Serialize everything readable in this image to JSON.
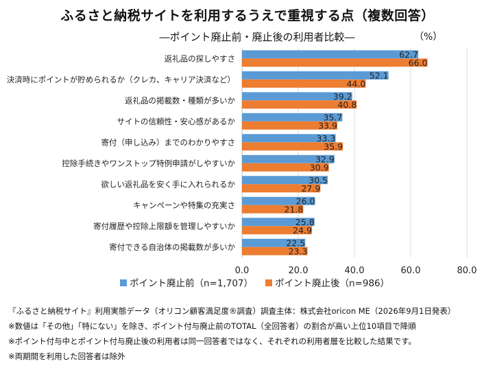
{
  "header": {
    "title": "ふるさと納税サイトを利用するうえで重視する点（複数回答）",
    "subtitle": "―ポイント廃止前・廃止後の利用者比較―",
    "unit": "（%）"
  },
  "chart_data": {
    "type": "bar",
    "orientation": "horizontal",
    "categories": [
      "返礼品の探しやすさ",
      "決済時にポイントが貯められるか（クレカ、キャリア決済など）",
      "返礼品の掲載数・種類が多いか",
      "サイトの信頼性・安心感があるか",
      "寄付（申し込み）までのわかりやすさ",
      "控除手続きやワンストップ特例申請がしやすいか",
      "欲しい返礼品を安く手に入れられるか",
      "キャンペーンや特集の充実さ",
      "寄付履歴や控除上限額を管理しやすいか",
      "寄付できる自治体の掲載数が多いか"
    ],
    "series": [
      {
        "name": "ポイント廃止前（n=1,707）",
        "color": "#5b9bd5",
        "values": [
          62.7,
          52.1,
          39.2,
          35.7,
          33.3,
          32.9,
          30.5,
          26.0,
          25.8,
          22.5
        ]
      },
      {
        "name": "ポイント廃止後（n=986）",
        "color": "#ed7d31",
        "values": [
          66.0,
          44.0,
          40.8,
          33.9,
          35.9,
          30.9,
          27.9,
          21.8,
          24.9,
          23.3
        ]
      }
    ],
    "xlim": [
      0,
      80
    ],
    "xticks": [
      "0.0",
      "20.0",
      "40.0",
      "60.0",
      "80.0"
    ],
    "legend_position": "bottom",
    "grid": true
  },
  "footnotes": [
    "『ふるさと納税サイト』利用実態データ（オリコン顧客満足度®調査）調査主体：株式会社oricon ME（2026年9月1日発表）",
    "※数値は「その他」「特にない」を除き、ポイント付与廃止前のTOTAL（全回答者）の割合が高い上位10項目で降順",
    "※ポイント付与中とポイント付与廃止後の利用者は同一回答者ではなく、それぞれの利用者層を比較した結果です。",
    "※両期間を利用した回答者は除外"
  ]
}
